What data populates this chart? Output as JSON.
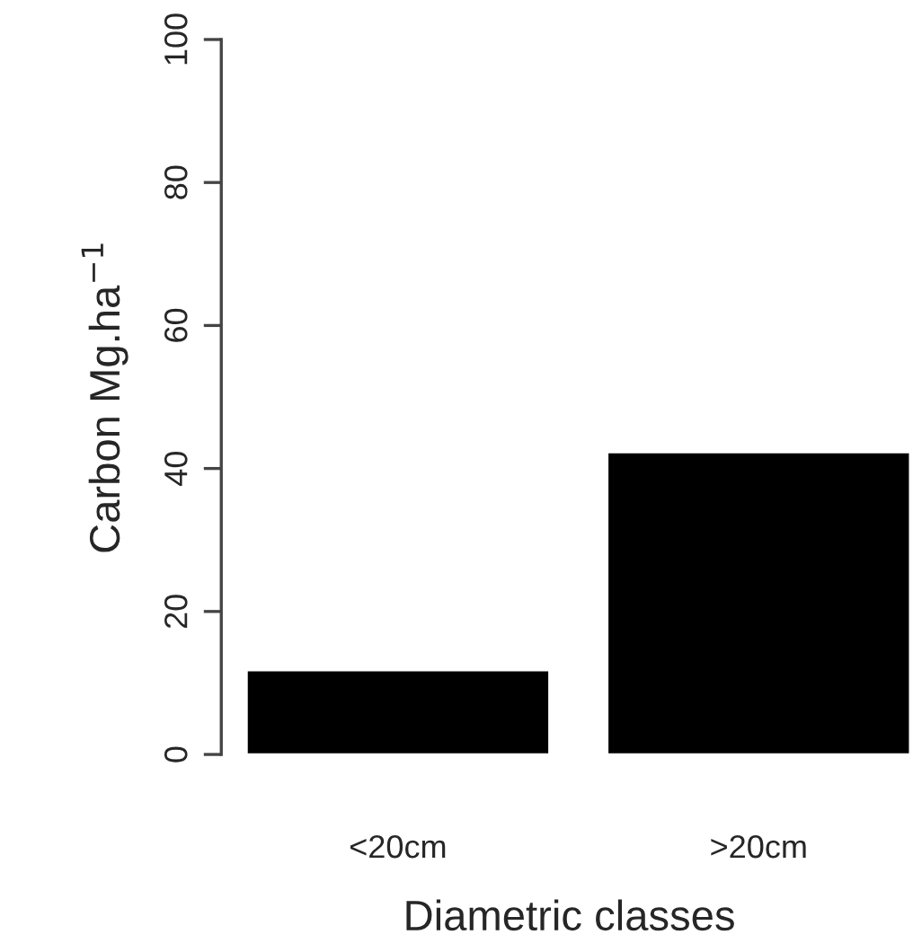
{
  "chart_data": {
    "type": "bar",
    "xlabel": "Diametric classes",
    "ylabel": "Carbon Mg.ha$^{−1}$",
    "categories": [
      "<20cm",
      ">20cm"
    ],
    "values": [
      11.8,
      42.3
    ],
    "color": "#000000",
    "ylim": [
      0,
      100
    ],
    "yticks": [
      0,
      20,
      40,
      60,
      80,
      100
    ],
    "grid": false,
    "legend": false
  }
}
